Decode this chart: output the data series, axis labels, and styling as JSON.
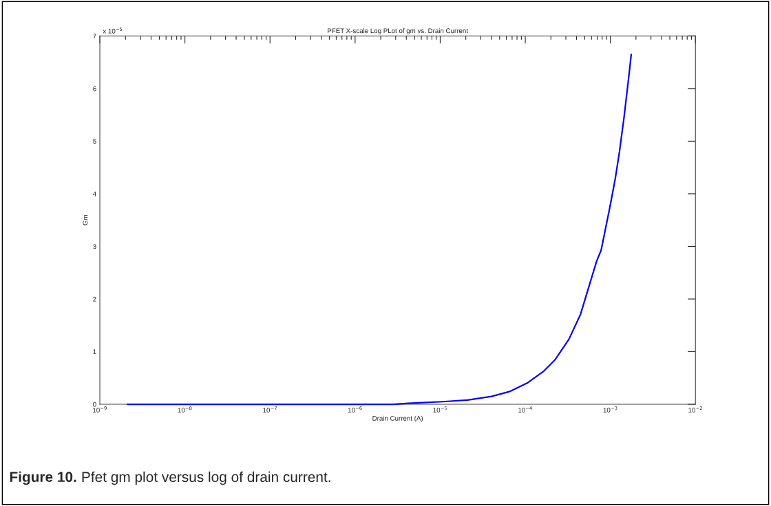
{
  "chart_data": {
    "type": "line",
    "title": "PFET X-scale Log PLot of gm vs. Drain Current",
    "xlabel": "Drain Current (A)",
    "ylabel": "Gm",
    "log": "x",
    "series": [
      {
        "color": "#0000ff",
        "x": [
          2.1e-09,
          1e-08,
          1e-07,
          1e-06,
          2.8e-06,
          4.2e-06,
          1.07e-05,
          2.1e-05,
          4e-05,
          6.5e-05,
          0.000107,
          0.000165,
          0.000225,
          0.000327,
          0.000446,
          0.00069,
          0.00078,
          0.00098,
          0.00114,
          0.00128,
          0.00145,
          0.00164,
          0.00176
        ],
        "values": [
          0,
          0,
          0,
          0,
          0,
          0.02,
          0.05,
          0.08,
          0.15,
          0.24,
          0.41,
          0.63,
          0.85,
          1.24,
          1.71,
          2.72,
          2.93,
          3.72,
          4.28,
          4.8,
          5.46,
          6.2,
          6.65
        ]
      }
    ],
    "xlim": [
      1e-09,
      0.01
    ],
    "xticks": [
      {
        "value": 1e-09,
        "label": "10$^{−9}$"
      },
      {
        "value": 1e-08,
        "label": "10$^{−8}$"
      },
      {
        "value": 1e-07,
        "label": "10$^{−7}$"
      },
      {
        "value": 1e-06,
        "label": "10$^{−6}$"
      },
      {
        "value": 1e-05,
        "label": "10$^{−5}$"
      },
      {
        "value": 0.0001,
        "label": "10$^{−4}$"
      },
      {
        "value": 0.001,
        "label": "10$^{−3}$"
      },
      {
        "value": 0.01,
        "label": "10$^{−2}$"
      }
    ],
    "ylim": [
      0,
      7
    ],
    "yticks": [
      0,
      1,
      2,
      3,
      4,
      5,
      6,
      7
    ],
    "grid": false,
    "legend": false,
    "annotations": [
      "x 10$^{−5}$",
      "Figure 10.",
      "Pfet gm plot versus log of drain current."
    ]
  }
}
